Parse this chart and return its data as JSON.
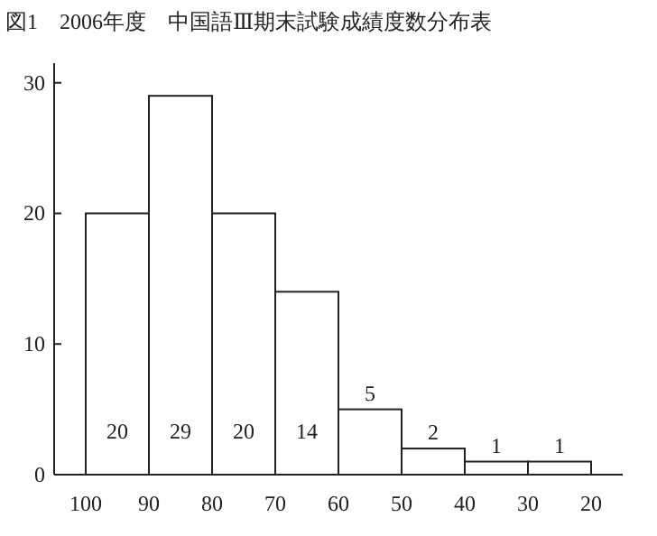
{
  "chart_data": {
    "type": "histogram",
    "title": "図1　2006年度　中国語Ⅲ期末試験成績度数分布表",
    "bins": [
      100,
      90,
      80,
      70,
      60,
      50,
      40,
      30,
      20
    ],
    "values": [
      20,
      29,
      20,
      14,
      5,
      2,
      1,
      1
    ],
    "color": "#ffffff",
    "xlim": [
      105,
      15
    ],
    "ylim": [
      0,
      31.5
    ],
    "xticks": [
      100,
      90,
      80,
      70,
      60,
      50,
      40,
      30,
      20
    ],
    "yticks": [
      0,
      10,
      20,
      30
    ],
    "data_labels": true
  }
}
